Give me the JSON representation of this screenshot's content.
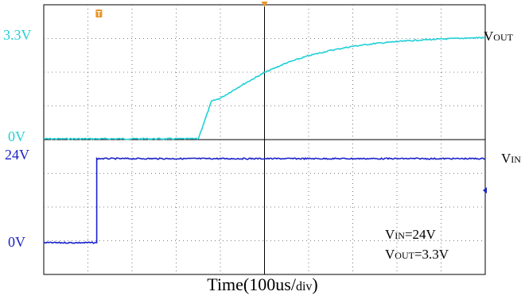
{
  "chart_data": {
    "type": "line",
    "title": "",
    "xlabel": {
      "main": "Time(100us/",
      "unit": "div",
      "close": ")"
    },
    "x_divisions": 10,
    "trigger_marker": "T",
    "panels": [
      {
        "name": "vout-panel",
        "y_divisions": 4,
        "color": "#22d0d8",
        "y_labels": {
          "top": "3.3V",
          "bottom": "0V"
        },
        "side_label": {
          "main": "V",
          "sub": "OUT"
        },
        "series": [
          {
            "name": "",
            "t": [
              0,
              3.5,
              3.8,
              4.0,
              4.5,
              5.0,
              5.5,
              6.0,
              6.5,
              7.0,
              7.5,
              8.0,
              8.5,
              9.0,
              9.5,
              10.0
            ],
            "v": [
              0,
              0,
              1.2,
              1.3,
              1.73,
              2.12,
              2.43,
              2.66,
              2.83,
              2.96,
              3.05,
              3.11,
              3.16,
              3.19,
              3.22,
              3.24
            ]
          }
        ]
      },
      {
        "name": "vin-panel",
        "y_divisions": 4,
        "color": "#1a22c8",
        "y_labels": {
          "top": "24V",
          "bottom": "0V"
        },
        "side_label": {
          "main": "V",
          "sub": "IN"
        },
        "series": [
          {
            "name": "",
            "t": [
              0,
              1.2,
              1.2,
              10.0
            ],
            "v": [
              0,
              0,
              24,
              24
            ]
          }
        ]
      }
    ],
    "annotations": [
      {
        "main": "V",
        "sub": "IN",
        "rest": "=24V"
      },
      {
        "main": "V",
        "sub": "OUT",
        "rest": "=3.3V"
      }
    ]
  },
  "colors": {
    "grid": "#555555",
    "frame": "#000000",
    "marker": "#e8962a"
  }
}
